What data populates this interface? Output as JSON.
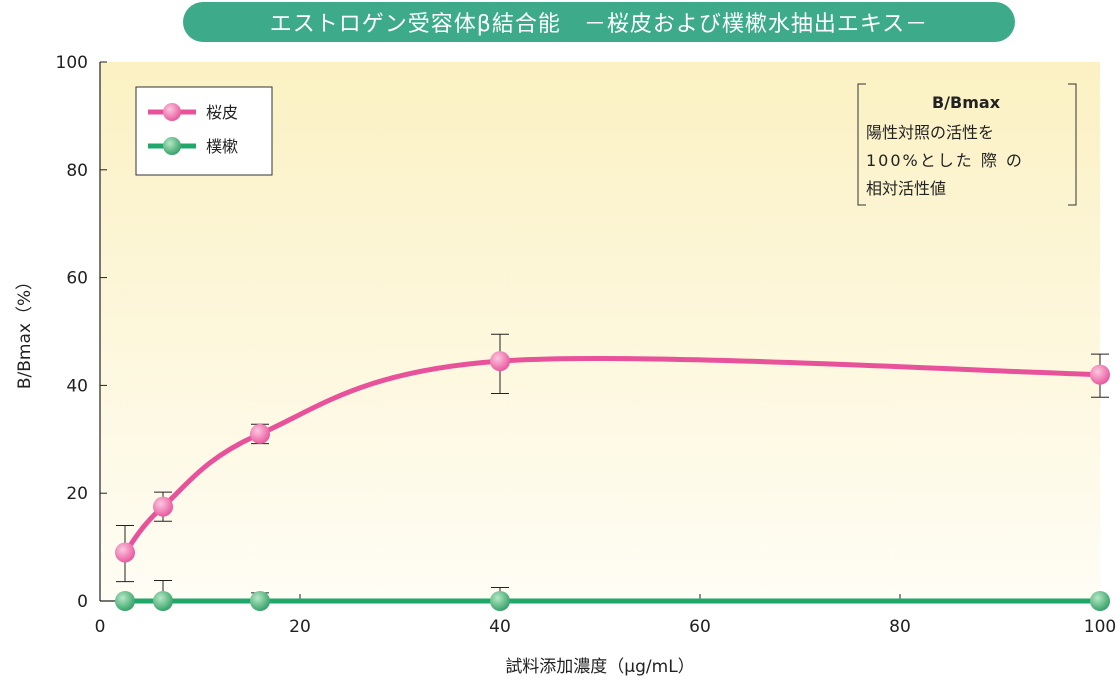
{
  "chart_data": {
    "type": "line",
    "title": "エストロゲン受容体β結合能　－桜皮および樸樕水抽出エキス－",
    "xlabel": "試料添加濃度（μg/mL）",
    "ylabel": "B/Bmax（%）",
    "xlim": [
      0,
      100
    ],
    "ylim": [
      0,
      100
    ],
    "x_ticks": [
      "0",
      "20",
      "40",
      "60",
      "80",
      "100"
    ],
    "y_ticks": [
      "0",
      "20",
      "40",
      "60",
      "80",
      "100"
    ],
    "grid": false,
    "legend_position": "top-left",
    "series": [
      {
        "name": "桜皮",
        "color": "#e8529a",
        "x": [
          2.5,
          6.3,
          16,
          40,
          100
        ],
        "values": [
          9,
          17.5,
          31,
          44.5,
          42
        ],
        "error": [
          [
            3.6,
            14
          ],
          [
            14.8,
            20.2
          ],
          [
            29.2,
            32.8
          ],
          [
            38.5,
            49.5
          ],
          [
            37.8,
            45.8
          ]
        ]
      },
      {
        "name": "樸樕",
        "color": "#1fa86a",
        "x": [
          2.5,
          6.3,
          16,
          40,
          100
        ],
        "values": [
          0,
          0,
          0,
          0,
          0
        ],
        "error": [
          [
            0,
            0
          ],
          [
            0,
            3.8
          ],
          [
            0,
            1.5
          ],
          [
            0,
            2.5
          ],
          [
            0,
            0
          ]
        ]
      }
    ],
    "annotation": {
      "title": "B/Bmax",
      "lines": [
        "陽性対照の活性を",
        "100%とした 際 の",
        "相対活性値"
      ]
    }
  }
}
